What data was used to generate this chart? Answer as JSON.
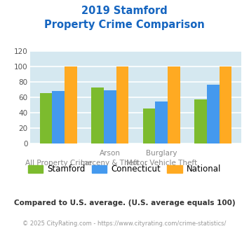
{
  "title_line1": "2019 Stamford",
  "title_line2": "Property Crime Comparison",
  "title_color": "#1565C0",
  "top_labels": [
    "",
    "Arson",
    "Burglary",
    ""
  ],
  "bottom_labels": [
    "All Property Crime",
    "Larceny & Theft",
    "Motor Vehicle Theft",
    ""
  ],
  "groups": 4,
  "stamford": [
    65,
    72,
    45,
    57
  ],
  "connecticut": [
    68,
    69,
    54,
    76
  ],
  "national": [
    100,
    100,
    100,
    100
  ],
  "stamford_color": "#7CBB2E",
  "connecticut_color": "#4499EE",
  "national_color": "#FFAA22",
  "ylim": [
    0,
    120
  ],
  "yticks": [
    0,
    20,
    40,
    60,
    80,
    100,
    120
  ],
  "background_color": "#d5e8f0",
  "footer_text": "Compared to U.S. average. (U.S. average equals 100)",
  "footer_color": "#333333",
  "copyright_text": "© 2025 CityRating.com - https://www.cityrating.com/crime-statistics/",
  "copyright_color": "#999999",
  "legend_labels": [
    "Stamford",
    "Connecticut",
    "National"
  ],
  "bar_width": 0.24
}
